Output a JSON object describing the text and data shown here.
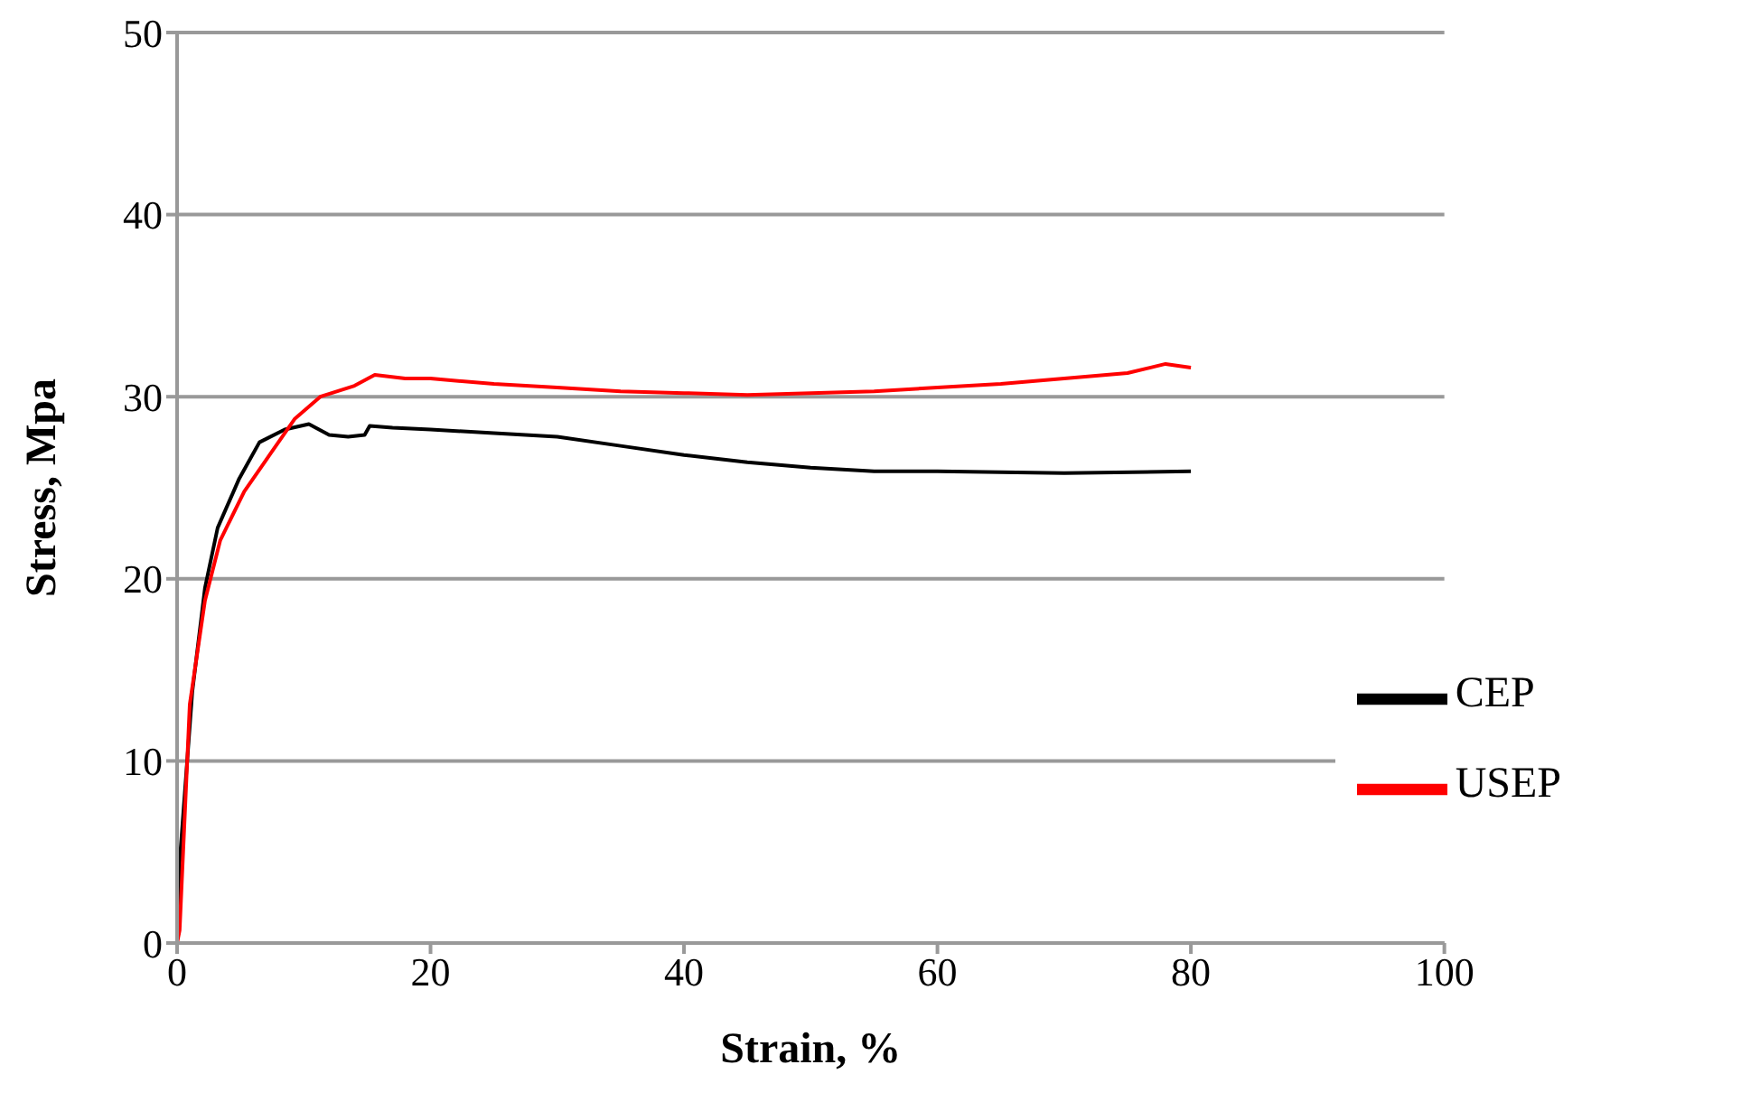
{
  "chart_data": {
    "type": "line",
    "xlabel": "Strain, %",
    "ylabel": "Stress, Mpa",
    "xlim": [
      0,
      100
    ],
    "xticks": [
      0,
      20,
      40,
      60,
      80,
      100
    ],
    "ylim": [
      0,
      50
    ],
    "yticks": [
      0,
      10,
      20,
      30,
      40,
      50
    ],
    "grid": "y",
    "legend": "right",
    "marker": "none",
    "line_style": "solid",
    "series": [
      {
        "name": "CEP",
        "color": "#000000",
        "x": [
          0,
          0.2,
          1.2,
          2.2,
          3.2,
          4.9,
          6.5,
          8.5,
          10.4,
          12,
          13.5,
          14.8,
          15.2,
          17,
          20,
          25,
          30,
          35,
          40,
          45,
          50,
          55,
          60,
          70,
          80
        ],
        "values": [
          0,
          4.4,
          13.8,
          19.5,
          22.8,
          25.5,
          27.5,
          28.2,
          28.5,
          27.9,
          27.8,
          27.9,
          28.4,
          28.3,
          28.2,
          28.0,
          27.8,
          27.3,
          26.8,
          26.4,
          26.1,
          25.9,
          25.9,
          25.8,
          25.9
        ]
      },
      {
        "name": "USEP",
        "color": "#ff0000",
        "x": [
          0,
          0.2,
          1.0,
          2.2,
          3.4,
          5.3,
          7.3,
          9.3,
          11.3,
          14,
          15.6,
          18,
          20,
          25,
          30,
          35,
          40,
          45,
          50,
          55,
          60,
          65,
          70,
          75,
          78,
          80
        ],
        "values": [
          0,
          0.7,
          13.1,
          18.8,
          22.1,
          24.8,
          26.8,
          28.8,
          30.0,
          30.6,
          31.2,
          31.0,
          31.0,
          30.7,
          30.5,
          30.3,
          30.2,
          30.1,
          30.2,
          30.3,
          30.5,
          30.7,
          31.0,
          31.3,
          31.8,
          31.6
        ]
      }
    ]
  }
}
